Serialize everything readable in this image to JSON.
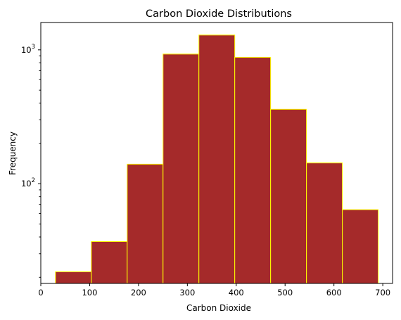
{
  "chart_data": {
    "type": "bar",
    "subtype": "histogram",
    "title": "Carbon Dioxide Distributions",
    "xlabel": "Carbon Dioxide",
    "ylabel": "Frequency",
    "yscale": "log",
    "xlim": [
      0,
      720
    ],
    "ylim": [
      18,
      1600
    ],
    "x_ticks": [
      0,
      100,
      200,
      300,
      400,
      500,
      600,
      700
    ],
    "x_tick_labels": [
      "0",
      "100",
      "200",
      "300",
      "400",
      "500",
      "600",
      "700"
    ],
    "y_ticks_major": [
      100,
      1000
    ],
    "y_tick_labels": [
      {
        "base": "10",
        "exp": "2"
      },
      {
        "base": "10",
        "exp": "3"
      }
    ],
    "bin_edges": [
      30,
      103.4,
      176.8,
      250.2,
      323.6,
      397,
      470.4,
      543.8,
      617.2,
      690.6
    ],
    "values": [
      22,
      37,
      140,
      930,
      1290,
      880,
      360,
      143,
      64
    ],
    "grid": false,
    "legend": false,
    "colors": {
      "bar_fill": "#a52a2a",
      "bar_edge": "#ffff00"
    }
  }
}
